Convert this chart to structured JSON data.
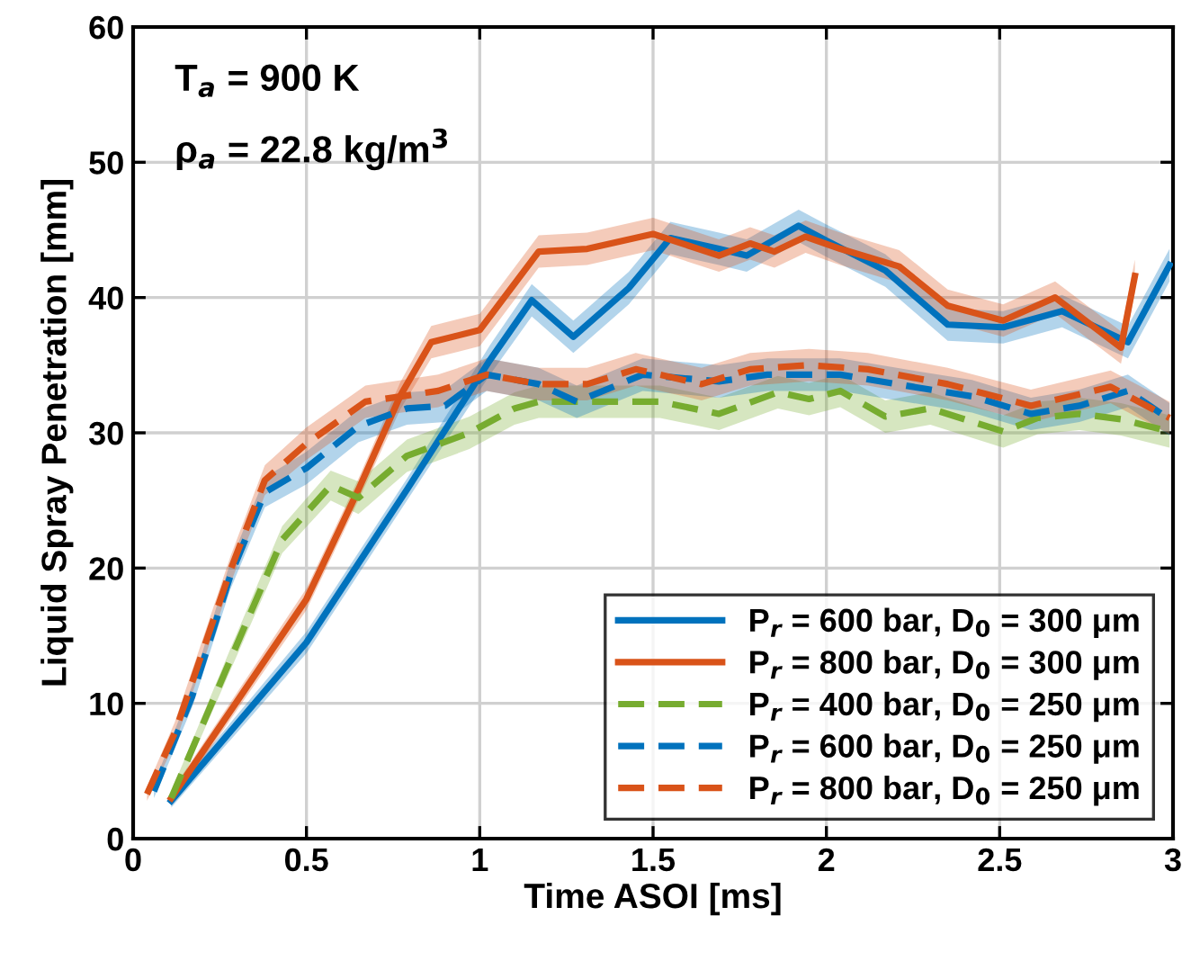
{
  "chart_data": {
    "type": "line",
    "xlabel": "Time ASOI [ms]",
    "ylabel": "Liquid Spray Penetration [mm]",
    "annotations": [
      "T$_{a}$ = 900 K",
      "ρ$_{a}$ = 22.8 kg/m$^{3}$"
    ],
    "xlim": [
      0,
      3
    ],
    "ylim": [
      0,
      60
    ],
    "xticks": [
      0,
      0.5,
      1,
      1.5,
      2,
      2.5,
      3
    ],
    "yticks": [
      0,
      10,
      20,
      30,
      40,
      50,
      60
    ],
    "grid": true,
    "legend": "bottom right",
    "marker": "none",
    "series": [
      {
        "name": "P$_{r}$ = 600 bar, D$_{0}$ = 300 μm",
        "color": "#0072bd",
        "line_style": "solid",
        "x": [
          0.11,
          0.5,
          0.79,
          1.03,
          1.15,
          1.27,
          1.43,
          1.55,
          1.69,
          1.77,
          1.92,
          2.0,
          2.17,
          2.35,
          2.51,
          2.68,
          2.87,
          2.99
        ],
        "values": [
          2.8,
          14.5,
          25.8,
          35.4,
          39.8,
          37.1,
          40.7,
          44.4,
          43.6,
          43.1,
          45.3,
          44.2,
          42.0,
          38.0,
          37.8,
          39.0,
          36.7,
          42.4
        ],
        "lower": [
          2.3,
          13.7,
          25.0,
          34.3,
          38.6,
          35.9,
          39.5,
          43.2,
          42.4,
          41.9,
          44.1,
          43.0,
          40.8,
          36.8,
          36.6,
          37.8,
          35.5,
          41.2
        ],
        "upper": [
          3.3,
          15.3,
          26.6,
          36.5,
          41.0,
          38.3,
          41.9,
          45.6,
          44.8,
          44.3,
          46.5,
          45.4,
          43.2,
          39.2,
          39.0,
          40.2,
          37.9,
          43.6
        ]
      },
      {
        "name": "P$_{r}$ = 800 bar, D$_{0}$ = 300 μm",
        "color": "#d95319",
        "line_style": "solid",
        "x": [
          0.11,
          0.5,
          0.65,
          0.77,
          0.86,
          1.0,
          1.17,
          1.31,
          1.5,
          1.69,
          1.78,
          1.85,
          1.94,
          2.04,
          2.21,
          2.35,
          2.51,
          2.66,
          2.85,
          2.89
        ],
        "values": [
          3.0,
          17.7,
          25.8,
          32.7,
          36.7,
          37.6,
          43.4,
          43.6,
          44.7,
          43.1,
          44.0,
          43.4,
          44.5,
          43.6,
          42.3,
          39.4,
          38.3,
          40.0,
          36.3,
          41.6
        ],
        "lower": [
          2.5,
          16.9,
          25.0,
          31.7,
          35.5,
          36.4,
          42.2,
          42.4,
          43.5,
          41.9,
          42.8,
          42.2,
          43.3,
          42.4,
          41.1,
          38.2,
          37.1,
          38.8,
          35.1,
          40.4
        ],
        "upper": [
          3.5,
          18.5,
          26.6,
          33.7,
          37.9,
          38.8,
          44.6,
          44.8,
          45.9,
          44.3,
          45.2,
          44.6,
          45.7,
          44.8,
          43.5,
          40.6,
          39.5,
          41.2,
          37.5,
          42.8
        ]
      },
      {
        "name": "P$_{r}$ = 400 bar, D$_{0}$ = 250 μm",
        "color": "#77ac30",
        "line_style": "dashed",
        "x": [
          0.11,
          0.28,
          0.43,
          0.57,
          0.65,
          0.79,
          0.97,
          1.1,
          1.17,
          1.34,
          1.52,
          1.69,
          1.86,
          1.95,
          2.04,
          2.17,
          2.3,
          2.51,
          2.61,
          2.73,
          2.85,
          2.99
        ],
        "values": [
          3.0,
          13.2,
          22.1,
          26.1,
          25.2,
          28.3,
          30.0,
          31.8,
          32.3,
          32.3,
          32.3,
          31.4,
          33.0,
          32.5,
          33.1,
          31.2,
          31.8,
          30.1,
          31.1,
          31.4,
          31.0,
          30.1
        ],
        "lower": [
          2.5,
          12.4,
          21.1,
          25.0,
          24.0,
          27.1,
          28.8,
          30.6,
          31.1,
          31.1,
          31.1,
          30.2,
          31.8,
          31.3,
          31.9,
          30.0,
          30.6,
          28.9,
          29.9,
          30.2,
          29.8,
          28.9
        ],
        "upper": [
          3.5,
          14.0,
          23.1,
          27.2,
          26.4,
          29.5,
          31.2,
          33.0,
          33.5,
          33.5,
          33.5,
          32.6,
          34.2,
          33.7,
          34.3,
          32.4,
          33.0,
          31.3,
          32.3,
          32.6,
          32.2,
          31.3
        ]
      },
      {
        "name": "P$_{r}$ = 600 bar, D$_{0}$ = 250 μm",
        "color": "#0072bd",
        "line_style": "dashed",
        "x": [
          0.06,
          0.17,
          0.28,
          0.38,
          0.5,
          0.65,
          0.79,
          0.9,
          1.02,
          1.17,
          1.28,
          1.47,
          1.69,
          1.83,
          2.04,
          2.25,
          2.42,
          2.59,
          2.73,
          2.87,
          2.99
        ],
        "values": [
          3.5,
          10.5,
          19.4,
          25.6,
          27.4,
          30.5,
          31.8,
          32.0,
          34.3,
          33.6,
          32.3,
          34.3,
          33.8,
          34.3,
          34.3,
          33.4,
          32.7,
          31.4,
          32.0,
          33.1,
          31.0
        ],
        "lower": [
          3.0,
          9.7,
          18.4,
          24.5,
          26.2,
          29.3,
          30.6,
          30.8,
          33.1,
          32.4,
          31.1,
          33.1,
          32.6,
          33.1,
          33.1,
          32.2,
          31.5,
          30.2,
          30.8,
          31.9,
          29.8
        ],
        "upper": [
          4.0,
          11.3,
          20.4,
          26.7,
          28.6,
          31.7,
          33.0,
          33.2,
          35.5,
          34.8,
          33.5,
          35.5,
          35.0,
          35.5,
          35.5,
          34.6,
          33.9,
          32.6,
          33.2,
          34.3,
          32.2
        ]
      },
      {
        "name": "P$_{r}$ = 800 bar, D$_{0}$ = 250 μm",
        "color": "#d95319",
        "line_style": "dashed",
        "x": [
          0.04,
          0.12,
          0.28,
          0.38,
          0.5,
          0.67,
          0.88,
          1.02,
          1.17,
          1.31,
          1.45,
          1.64,
          1.78,
          1.95,
          2.12,
          2.35,
          2.59,
          2.82,
          2.99
        ],
        "values": [
          3.3,
          7.8,
          19.8,
          26.5,
          29.2,
          32.3,
          33.1,
          34.3,
          33.6,
          33.6,
          34.7,
          33.6,
          34.7,
          35.0,
          34.7,
          33.6,
          32.0,
          33.4,
          31.1
        ],
        "lower": [
          2.8,
          7.0,
          18.8,
          25.4,
          28.0,
          31.1,
          31.9,
          33.1,
          32.4,
          32.4,
          33.5,
          32.4,
          33.5,
          33.8,
          33.5,
          32.4,
          30.8,
          32.2,
          29.9
        ],
        "upper": [
          3.8,
          8.6,
          20.8,
          27.6,
          30.4,
          33.5,
          34.3,
          35.5,
          34.8,
          34.8,
          35.9,
          34.8,
          35.9,
          36.2,
          35.9,
          34.8,
          33.2,
          34.6,
          32.3
        ]
      }
    ]
  }
}
